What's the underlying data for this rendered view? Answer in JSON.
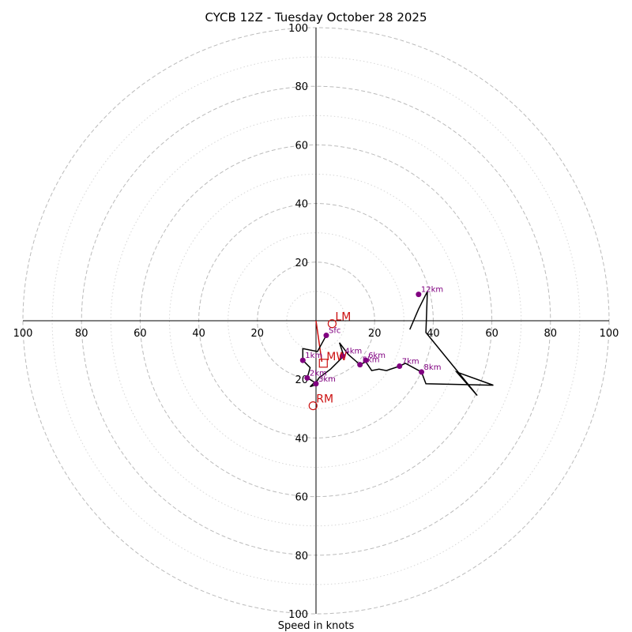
{
  "chart_data": {
    "type": "hodograph",
    "title": "CYCB 12Z - Tuesday October 28 2025",
    "xlabel": "Speed in knots",
    "unit": "knots",
    "range": [
      -100,
      100
    ],
    "ring_major": [
      20,
      40,
      60,
      80,
      100
    ],
    "ring_minor": [
      10,
      30,
      50,
      70,
      90
    ],
    "ticks": {
      "x_left": [
        "100",
        "80",
        "60",
        "40",
        "20"
      ],
      "x_right": [
        "20",
        "40",
        "60",
        "80",
        "100"
      ],
      "y_up": [
        "20",
        "40",
        "60",
        "80",
        "100"
      ],
      "y_down": [
        "20",
        "40",
        "60",
        "80",
        "100"
      ]
    },
    "trace": [
      [
        3.5,
        -5
      ],
      [
        0.5,
        -10.5
      ],
      [
        -4.5,
        -9.5
      ],
      [
        -4.5,
        -13.5
      ],
      [
        -2,
        -16
      ],
      [
        -3,
        -19.5
      ],
      [
        -0.5,
        -21
      ],
      [
        -2,
        -22.5
      ],
      [
        -0.5,
        -22
      ],
      [
        1,
        -19.5
      ],
      [
        5,
        -16.5
      ],
      [
        9.5,
        -12
      ],
      [
        8,
        -7.5
      ],
      [
        11,
        -11.5
      ],
      [
        15,
        -15
      ],
      [
        17,
        -14
      ],
      [
        19,
        -17
      ],
      [
        21.5,
        -16.5
      ],
      [
        24,
        -17
      ],
      [
        28.5,
        -15.5
      ],
      [
        30.5,
        -14.5
      ],
      [
        36,
        -17.5
      ],
      [
        37.5,
        -21.5
      ],
      [
        60.5,
        -22
      ],
      [
        48,
        -17.5
      ],
      [
        55,
        -25.5
      ],
      [
        37.5,
        -4
      ],
      [
        38,
        10
      ],
      [
        35,
        4
      ],
      [
        32,
        -3
      ]
    ],
    "bunkers_line": [
      [
        0,
        0
      ],
      [
        2,
        -14
      ]
    ],
    "markers": [
      {
        "label": "Sfc",
        "u": 3.5,
        "v": -5
      },
      {
        "label": "1km",
        "u": -4.5,
        "v": -13.5
      },
      {
        "label": "2km",
        "u": -3,
        "v": -19.5
      },
      {
        "label": "3km",
        "u": 0,
        "v": -21.5
      },
      {
        "label": "4km",
        "u": 9.0,
        "v": -12
      },
      {
        "label": "5km",
        "u": 15,
        "v": -15
      },
      {
        "label": "6km",
        "u": 17,
        "v": -13.5
      },
      {
        "label": "7km",
        "u": 28.5,
        "v": -15.5
      },
      {
        "label": "8km",
        "u": 36,
        "v": -17.5
      },
      {
        "label": "12km",
        "u": 35,
        "v": 9
      }
    ],
    "storm_motion": [
      {
        "label": "LM",
        "u": 5.5,
        "v": -1,
        "shape": "circle"
      },
      {
        "label": "MW",
        "u": 2.5,
        "v": -14.5,
        "shape": "square"
      },
      {
        "label": "RM",
        "u": -1,
        "v": -29,
        "shape": "circle"
      }
    ],
    "colors": {
      "trace": "#000000",
      "marker": "#800080",
      "storm": "#cc1111",
      "ring": "#bbbbbb",
      "ring_minor": "#d6d6d6"
    }
  }
}
